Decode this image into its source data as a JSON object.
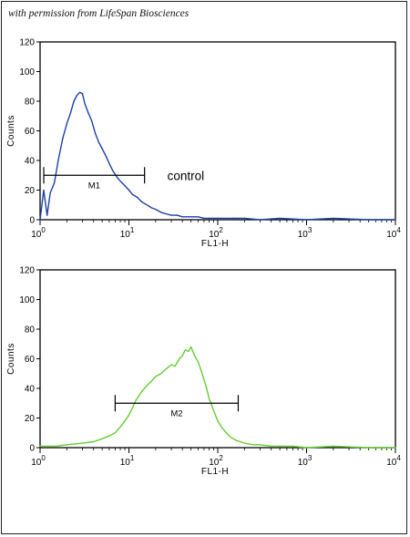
{
  "credit": "with permission from LifeSpan Biosciences",
  "colors": {
    "control_series": "#1f3fa8",
    "sample_series": "#66cc33",
    "axes": "#000000"
  },
  "chart_data": [
    {
      "type": "line",
      "title": "",
      "xlabel": "FL1-H",
      "ylabel": "Counts",
      "x_scale": "log",
      "xlim": [
        1,
        10000
      ],
      "ylim": [
        0,
        120
      ],
      "y_ticks": [
        0,
        20,
        40,
        60,
        80,
        100,
        120
      ],
      "x_ticks": [
        {
          "value": 1,
          "label": "10",
          "exp": "0"
        },
        {
          "value": 10,
          "label": "10",
          "exp": "1"
        },
        {
          "value": 100,
          "label": "10",
          "exp": "2"
        },
        {
          "value": 1000,
          "label": "10",
          "exp": "3"
        },
        {
          "value": 10000,
          "label": "10",
          "exp": "4"
        }
      ],
      "grid": false,
      "annotation": "control",
      "gate": {
        "label": "M1",
        "x_start": 1.1,
        "x_end": 15,
        "y": 30
      },
      "series": [
        {
          "color": "#1f3fa8",
          "x": [
            1.0,
            1.1,
            1.2,
            1.3,
            1.45,
            1.6,
            1.8,
            2.0,
            2.2,
            2.4,
            2.6,
            2.8,
            3.0,
            3.2,
            3.5,
            3.8,
            4.2,
            4.6,
            5.0,
            5.5,
            6.0,
            6.6,
            7.3,
            8.0,
            9.0,
            10,
            11,
            12.5,
            14,
            16,
            18,
            20,
            23,
            26,
            30,
            35,
            40,
            50,
            60,
            70,
            80,
            100,
            150,
            200,
            300,
            500,
            1000,
            2000,
            5000,
            10000
          ],
          "y": [
            0,
            20,
            3,
            18,
            25,
            40,
            55,
            65,
            72,
            80,
            84,
            86,
            85,
            78,
            72,
            67,
            58,
            52,
            48,
            43,
            38,
            33,
            29,
            26,
            23,
            20,
            17,
            15,
            12,
            10,
            8,
            7,
            5,
            4,
            3,
            3,
            2,
            2,
            2,
            1,
            1,
            1,
            1,
            1,
            0,
            1,
            0,
            1,
            0,
            0
          ]
        }
      ]
    },
    {
      "type": "line",
      "title": "",
      "xlabel": "FL1-H",
      "ylabel": "Counts",
      "x_scale": "log",
      "xlim": [
        1,
        10000
      ],
      "ylim": [
        0,
        120
      ],
      "y_ticks": [
        0,
        20,
        40,
        60,
        80,
        100,
        120
      ],
      "x_ticks": [
        {
          "value": 1,
          "label": "10",
          "exp": "0"
        },
        {
          "value": 10,
          "label": "10",
          "exp": "1"
        },
        {
          "value": 100,
          "label": "10",
          "exp": "2"
        },
        {
          "value": 1000,
          "label": "10",
          "exp": "3"
        },
        {
          "value": 10000,
          "label": "10",
          "exp": "4"
        }
      ],
      "grid": false,
      "gate": {
        "label": "M2",
        "x_start": 7,
        "x_end": 170,
        "y": 30
      },
      "series": [
        {
          "color": "#66cc33",
          "x": [
            1.0,
            1.5,
            2,
            3,
            4,
            5,
            6,
            7,
            8,
            9,
            10,
            11,
            12,
            14,
            16,
            18,
            20,
            23,
            26,
            30,
            33,
            37,
            40,
            43,
            47,
            50,
            55,
            60,
            65,
            70,
            75,
            80,
            90,
            100,
            110,
            125,
            140,
            160,
            180,
            200,
            250,
            300,
            400,
            500,
            700,
            1000,
            2000,
            5000,
            10000
          ],
          "y": [
            1,
            1,
            2,
            3,
            4,
            6,
            8,
            10,
            14,
            18,
            22,
            27,
            32,
            38,
            42,
            45,
            48,
            50,
            53,
            56,
            55,
            60,
            62,
            66,
            65,
            68,
            62,
            58,
            52,
            46,
            40,
            33,
            25,
            18,
            14,
            10,
            7,
            5,
            4,
            3,
            2,
            2,
            1,
            1,
            1,
            0,
            1,
            0,
            0
          ]
        }
      ]
    }
  ]
}
